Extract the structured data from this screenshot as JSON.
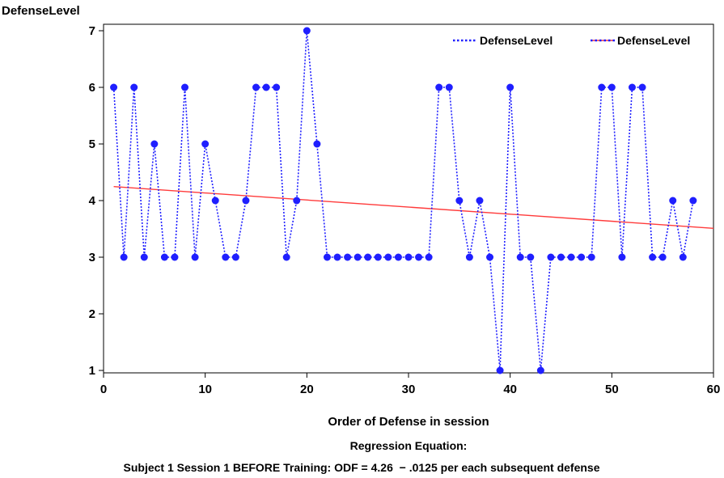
{
  "chart_data": {
    "type": "line",
    "ylabel": "DefenseLevel",
    "xlabel": "Order of Defense in session",
    "xlim": [
      0,
      60
    ],
    "ylim": [
      1,
      7
    ],
    "xticks": [
      0,
      10,
      20,
      30,
      40,
      50,
      60
    ],
    "yticks": [
      1,
      2,
      3,
      4,
      5,
      6,
      7
    ],
    "grid": false,
    "legend_position": "top-right",
    "series": [
      {
        "name": "DefenseLevel",
        "style": "dotted-with-markers",
        "color": "#1f1fff",
        "x": [
          1,
          2,
          3,
          4,
          5,
          6,
          7,
          8,
          9,
          10,
          11,
          12,
          13,
          14,
          15,
          16,
          17,
          18,
          19,
          20,
          21,
          22,
          23,
          24,
          25,
          26,
          27,
          28,
          29,
          30,
          31,
          32,
          33,
          34,
          35,
          36,
          37,
          38,
          39,
          40,
          41,
          42,
          43,
          44,
          45,
          46,
          47,
          48,
          49,
          50,
          51,
          52,
          53,
          54,
          55,
          56,
          57,
          58
        ],
        "y": [
          6,
          3,
          6,
          3,
          5,
          3,
          3,
          6,
          3,
          5,
          4,
          3,
          3,
          4,
          6,
          6,
          6,
          3,
          4,
          7,
          5,
          3,
          3,
          3,
          3,
          3,
          3,
          3,
          3,
          3,
          3,
          3,
          6,
          6,
          4,
          3,
          4,
          3,
          1,
          6,
          3,
          3,
          1,
          3,
          3,
          3,
          3,
          3,
          6,
          6,
          3,
          6,
          6,
          3,
          3,
          4,
          3,
          4
        ]
      },
      {
        "name": "DefenseLevel",
        "style": "regression-line",
        "color": "#ff3b3b",
        "intercept": 4.26,
        "slope": -0.0125,
        "x": [
          1,
          58
        ],
        "y": [
          4.2475,
          3.535
        ]
      }
    ],
    "footnote_line1": "Regression Equation:",
    "footnote_line2": "Subject 1 Session 1 BEFORE Training: ODF = 4.26  − .0125 per each subsequent defense"
  }
}
